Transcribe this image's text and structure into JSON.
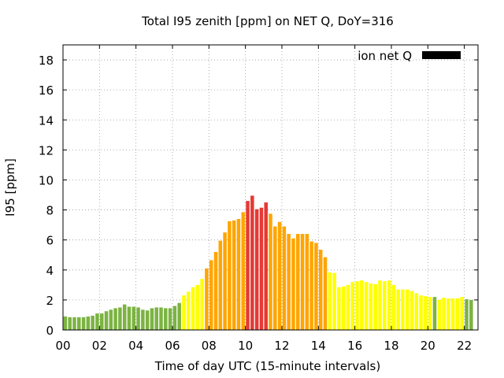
{
  "chart_data": {
    "type": "bar",
    "title": "Total I95 zenith [ppm] on NET Q, DoY=316",
    "xlabel": "Time of day UTC (15-minute intervals)",
    "ylabel": "I95 [ppm]",
    "xlim": [
      0,
      22.75
    ],
    "ylim": [
      0,
      19
    ],
    "grid": true,
    "legend": {
      "label": "ion net Q",
      "color": "#000000",
      "position": "top-right"
    },
    "x_ticks": [
      "00",
      "02",
      "04",
      "06",
      "08",
      "10",
      "12",
      "14",
      "16",
      "18",
      "20",
      "22"
    ],
    "y_ticks": [
      "0",
      "2",
      "4",
      "6",
      "8",
      "10",
      "12",
      "14",
      "16",
      "18"
    ],
    "interval_hours": 0.25,
    "colors": {
      "green": "#7cb342",
      "yellow": "#ffff00",
      "orange": "#ffa500",
      "red": "#e53935"
    },
    "values": [
      0.9,
      0.85,
      0.85,
      0.85,
      0.85,
      0.9,
      0.95,
      1.1,
      1.1,
      1.25,
      1.35,
      1.45,
      1.5,
      1.7,
      1.55,
      1.55,
      1.5,
      1.35,
      1.3,
      1.45,
      1.5,
      1.5,
      1.45,
      1.45,
      1.6,
      1.8,
      2.3,
      2.55,
      2.85,
      3.0,
      3.4,
      4.1,
      4.65,
      5.2,
      5.95,
      6.5,
      7.25,
      7.3,
      7.4,
      7.85,
      8.6,
      8.95,
      8.05,
      8.15,
      8.5,
      7.75,
      6.9,
      7.2,
      6.9,
      6.4,
      6.1,
      6.4,
      6.4,
      6.4,
      5.9,
      5.8,
      5.35,
      4.85,
      3.85,
      3.8,
      2.85,
      2.9,
      3.0,
      3.2,
      3.25,
      3.3,
      3.2,
      3.1,
      3.05,
      3.3,
      3.25,
      3.3,
      3.0,
      2.7,
      2.7,
      2.7,
      2.6,
      2.45,
      2.3,
      2.25,
      2.2,
      2.2,
      2.0,
      2.15,
      2.1,
      2.1,
      2.1,
      2.2,
      2.05,
      2.0
    ],
    "levels": [
      "green",
      "green",
      "green",
      "green",
      "green",
      "green",
      "green",
      "green",
      "green",
      "green",
      "green",
      "green",
      "green",
      "green",
      "green",
      "green",
      "green",
      "green",
      "green",
      "green",
      "green",
      "green",
      "green",
      "green",
      "green",
      "green",
      "yellow",
      "yellow",
      "yellow",
      "yellow",
      "yellow",
      "orange",
      "orange",
      "orange",
      "orange",
      "orange",
      "orange",
      "orange",
      "orange",
      "orange",
      "red",
      "red",
      "red",
      "red",
      "red",
      "orange",
      "orange",
      "orange",
      "orange",
      "orange",
      "orange",
      "orange",
      "orange",
      "orange",
      "orange",
      "orange",
      "orange",
      "orange",
      "yellow",
      "yellow",
      "yellow",
      "yellow",
      "yellow",
      "yellow",
      "yellow",
      "yellow",
      "yellow",
      "yellow",
      "yellow",
      "yellow",
      "yellow",
      "yellow",
      "yellow",
      "yellow",
      "yellow",
      "yellow",
      "yellow",
      "yellow",
      "yellow",
      "yellow",
      "yellow",
      "green",
      "yellow",
      "yellow",
      "yellow",
      "yellow",
      "yellow",
      "yellow",
      "green",
      "green"
    ]
  }
}
